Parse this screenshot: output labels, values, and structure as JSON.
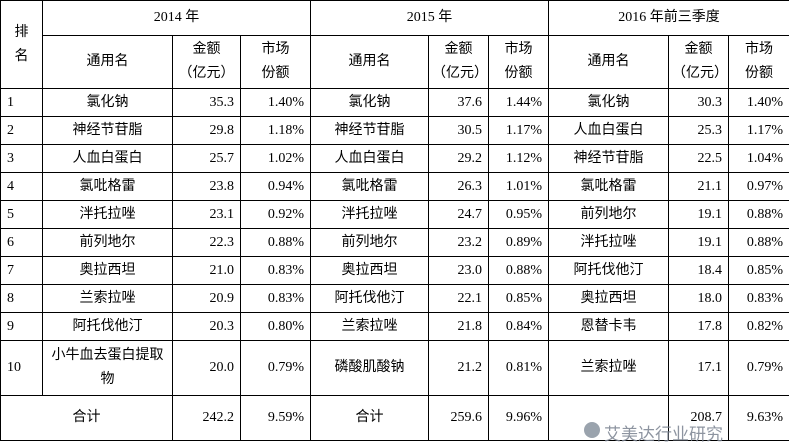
{
  "table": {
    "rank_header": "排名",
    "periods": [
      "2014 年",
      "2015 年",
      "2016 年前三季度"
    ],
    "subheaders": {
      "name": "通用名",
      "amount": [
        "金额",
        "（亿元）"
      ],
      "share": [
        "市场",
        "份额"
      ]
    },
    "rows": [
      {
        "rank": "1",
        "cells": [
          [
            "氯化钠",
            "35.3",
            "1.40%"
          ],
          [
            "氯化钠",
            "37.6",
            "1.44%"
          ],
          [
            "氯化钠",
            "30.3",
            "1.40%"
          ]
        ]
      },
      {
        "rank": "2",
        "cells": [
          [
            "神经节苷脂",
            "29.8",
            "1.18%"
          ],
          [
            "神经节苷脂",
            "30.5",
            "1.17%"
          ],
          [
            "人血白蛋白",
            "25.3",
            "1.17%"
          ]
        ]
      },
      {
        "rank": "3",
        "cells": [
          [
            "人血白蛋白",
            "25.7",
            "1.02%"
          ],
          [
            "人血白蛋白",
            "29.2",
            "1.12%"
          ],
          [
            "神经节苷脂",
            "22.5",
            "1.04%"
          ]
        ]
      },
      {
        "rank": "4",
        "cells": [
          [
            "氯吡格雷",
            "23.8",
            "0.94%"
          ],
          [
            "氯吡格雷",
            "26.3",
            "1.01%"
          ],
          [
            "氯吡格雷",
            "21.1",
            "0.97%"
          ]
        ]
      },
      {
        "rank": "5",
        "cells": [
          [
            "泮托拉唑",
            "23.1",
            "0.92%"
          ],
          [
            "泮托拉唑",
            "24.7",
            "0.95%"
          ],
          [
            "前列地尔",
            "19.1",
            "0.88%"
          ]
        ]
      },
      {
        "rank": "6",
        "cells": [
          [
            "前列地尔",
            "22.3",
            "0.88%"
          ],
          [
            "前列地尔",
            "23.2",
            "0.89%"
          ],
          [
            "泮托拉唑",
            "19.1",
            "0.88%"
          ]
        ]
      },
      {
        "rank": "7",
        "cells": [
          [
            "奥拉西坦",
            "21.0",
            "0.83%"
          ],
          [
            "奥拉西坦",
            "23.0",
            "0.88%"
          ],
          [
            "阿托伐他汀",
            "18.4",
            "0.85%"
          ]
        ]
      },
      {
        "rank": "8",
        "cells": [
          [
            "兰索拉唑",
            "20.9",
            "0.83%"
          ],
          [
            "阿托伐他汀",
            "22.1",
            "0.85%"
          ],
          [
            "奥拉西坦",
            "18.0",
            "0.83%"
          ]
        ]
      },
      {
        "rank": "9",
        "cells": [
          [
            "阿托伐他汀",
            "20.3",
            "0.80%"
          ],
          [
            "兰索拉唑",
            "21.8",
            "0.84%"
          ],
          [
            "恩替卡韦",
            "17.8",
            "0.82%"
          ]
        ]
      },
      {
        "rank": "10",
        "cells": [
          [
            "小牛血去蛋白提取物",
            "20.0",
            "0.79%"
          ],
          [
            "磷酸肌酸钠",
            "21.2",
            "0.81%"
          ],
          [
            "兰索拉唑",
            "17.1",
            "0.79%"
          ]
        ]
      }
    ],
    "total": {
      "label": "合计",
      "cells": [
        [
          "242.2",
          "9.59%"
        ],
        [
          "259.6",
          "9.96%"
        ],
        [
          "208.7",
          "9.63%"
        ]
      ]
    },
    "watermark": "艾美达行业研究"
  }
}
